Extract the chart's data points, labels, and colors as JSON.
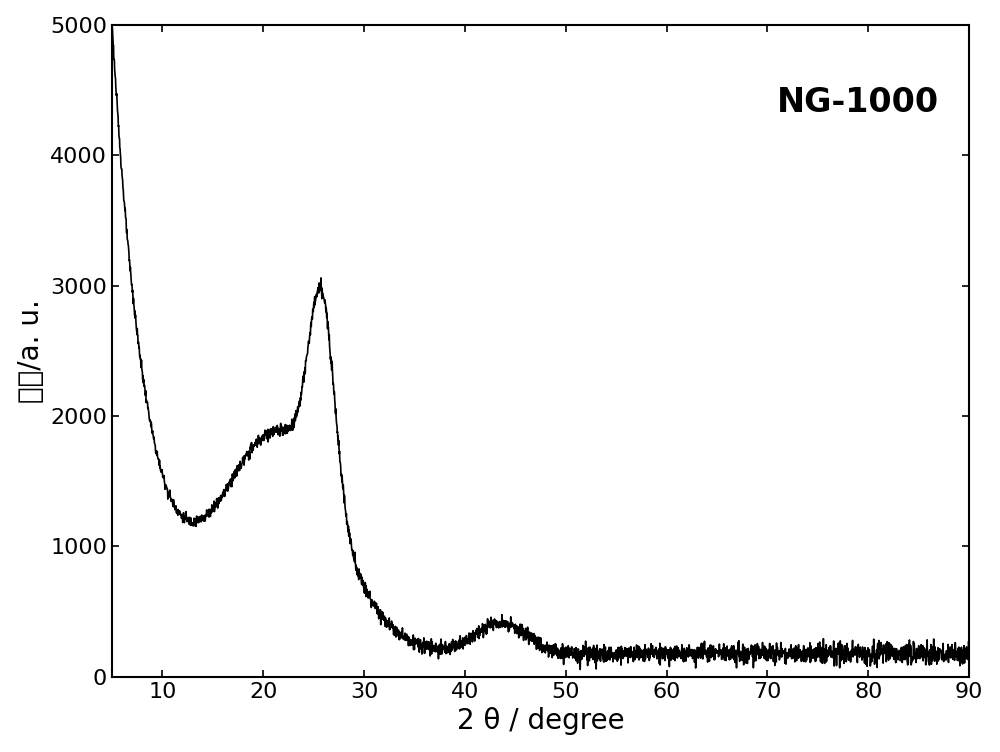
{
  "xlabel": "2 θ / degree",
  "ylabel": "强度/a. u.",
  "label": "NG-1000",
  "xlim": [
    5,
    90
  ],
  "ylim": [
    0,
    5000
  ],
  "xticks": [
    10,
    20,
    30,
    40,
    50,
    60,
    70,
    80,
    90
  ],
  "yticks": [
    0,
    1000,
    2000,
    3000,
    4000,
    5000
  ],
  "line_color": "#000000",
  "bg_color": "#ffffff",
  "label_fontsize": 20,
  "tick_fontsize": 16,
  "annotation_fontsize": 24,
  "annotation_fontweight": "bold",
  "linewidth": 1.2,
  "figsize": [
    10.0,
    7.52
  ]
}
